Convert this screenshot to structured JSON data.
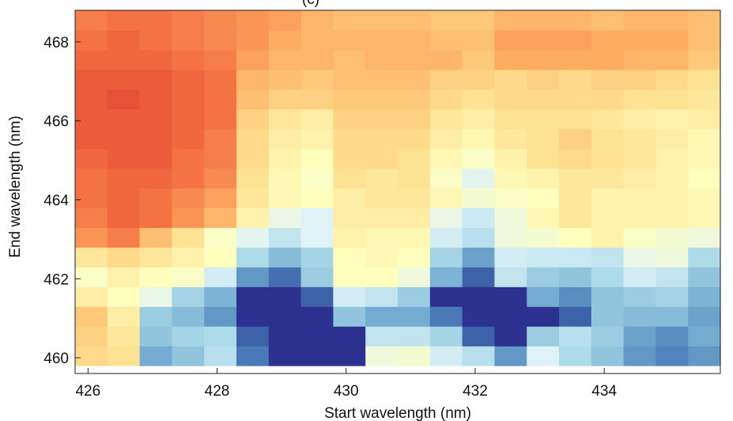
{
  "chart_data": {
    "type": "heatmap",
    "title": "(c)",
    "xlabel": "Start wavelength (nm)",
    "ylabel": "End wavelength (nm)",
    "x_start": 425.8,
    "x_step": 0.5,
    "y_start": 459.8,
    "y_step": 0.5,
    "xlim": [
      425.8,
      435.8
    ],
    "ylim": [
      459.6,
      468.8
    ],
    "xticks": [
      426,
      428,
      430,
      432,
      434
    ],
    "yticks": [
      460,
      462,
      464,
      466,
      468
    ],
    "xtick_labels": [
      "426",
      "428",
      "430",
      "432",
      "434"
    ],
    "ytick_labels": [
      "460",
      "462",
      "464",
      "466",
      "468"
    ],
    "colorscale": [
      "#2c3190",
      "#4575b4",
      "#74add1",
      "#abd9e9",
      "#e0f3f8",
      "#ffffbf",
      "#fee090",
      "#fdae61",
      "#f46d43",
      "#d73027"
    ],
    "values": [
      [
        0.68,
        0.66,
        0.22,
        0.28,
        0.36,
        0.12,
        0.0,
        0.0,
        0.0,
        0.5,
        0.52,
        0.42,
        0.36,
        0.18,
        0.44,
        0.34,
        0.28,
        0.18,
        0.14,
        0.18
      ],
      [
        0.7,
        0.64,
        0.28,
        0.32,
        0.34,
        0.08,
        0.0,
        0.0,
        0.0,
        0.38,
        0.38,
        0.32,
        0.08,
        0.0,
        0.3,
        0.36,
        0.3,
        0.2,
        0.16,
        0.22
      ],
      [
        0.72,
        0.62,
        0.3,
        0.26,
        0.18,
        0.0,
        0.0,
        0.0,
        0.28,
        0.22,
        0.22,
        0.12,
        0.0,
        0.0,
        0.0,
        0.08,
        0.28,
        0.26,
        0.26,
        0.2
      ],
      [
        0.62,
        0.56,
        0.48,
        0.32,
        0.24,
        0.0,
        0.0,
        0.08,
        0.42,
        0.38,
        0.3,
        0.0,
        0.0,
        0.0,
        0.22,
        0.16,
        0.28,
        0.3,
        0.32,
        0.24
      ],
      [
        0.54,
        0.6,
        0.56,
        0.54,
        0.42,
        0.18,
        0.1,
        0.3,
        0.56,
        0.56,
        0.5,
        0.24,
        0.08,
        0.38,
        0.3,
        0.28,
        0.34,
        0.42,
        0.38,
        0.28
      ],
      [
        0.64,
        0.68,
        0.64,
        0.6,
        0.56,
        0.34,
        0.26,
        0.32,
        0.56,
        0.58,
        0.56,
        0.32,
        0.2,
        0.42,
        0.4,
        0.4,
        0.38,
        0.48,
        0.5,
        0.34
      ],
      [
        0.82,
        0.86,
        0.74,
        0.66,
        0.54,
        0.46,
        0.38,
        0.44,
        0.6,
        0.58,
        0.58,
        0.42,
        0.36,
        0.5,
        0.52,
        0.56,
        0.6,
        0.54,
        0.52,
        0.5
      ],
      [
        0.86,
        0.9,
        0.88,
        0.82,
        0.76,
        0.6,
        0.48,
        0.44,
        0.62,
        0.62,
        0.62,
        0.48,
        0.4,
        0.5,
        0.58,
        0.64,
        0.6,
        0.6,
        0.6,
        0.58
      ],
      [
        0.88,
        0.9,
        0.88,
        0.84,
        0.8,
        0.64,
        0.58,
        0.56,
        0.62,
        0.64,
        0.64,
        0.58,
        0.52,
        0.54,
        0.56,
        0.64,
        0.6,
        0.6,
        0.6,
        0.58
      ],
      [
        0.88,
        0.9,
        0.9,
        0.88,
        0.84,
        0.66,
        0.58,
        0.54,
        0.66,
        0.64,
        0.66,
        0.54,
        0.46,
        0.58,
        0.6,
        0.64,
        0.64,
        0.62,
        0.6,
        0.56
      ],
      [
        0.9,
        0.92,
        0.92,
        0.88,
        0.86,
        0.68,
        0.6,
        0.56,
        0.68,
        0.68,
        0.66,
        0.58,
        0.54,
        0.6,
        0.66,
        0.68,
        0.66,
        0.64,
        0.6,
        0.58
      ],
      [
        0.92,
        0.92,
        0.92,
        0.9,
        0.86,
        0.68,
        0.62,
        0.6,
        0.68,
        0.68,
        0.68,
        0.62,
        0.58,
        0.64,
        0.66,
        0.7,
        0.66,
        0.64,
        0.62,
        0.58
      ],
      [
        0.92,
        0.92,
        0.92,
        0.9,
        0.88,
        0.7,
        0.64,
        0.62,
        0.7,
        0.7,
        0.7,
        0.64,
        0.62,
        0.66,
        0.66,
        0.66,
        0.64,
        0.62,
        0.6,
        0.62
      ],
      [
        0.92,
        0.94,
        0.92,
        0.9,
        0.88,
        0.74,
        0.7,
        0.7,
        0.72,
        0.72,
        0.72,
        0.68,
        0.66,
        0.68,
        0.68,
        0.68,
        0.68,
        0.66,
        0.66,
        0.64
      ],
      [
        0.92,
        0.92,
        0.92,
        0.9,
        0.88,
        0.76,
        0.74,
        0.72,
        0.74,
        0.74,
        0.74,
        0.7,
        0.7,
        0.68,
        0.7,
        0.68,
        0.7,
        0.7,
        0.68,
        0.66
      ],
      [
        0.9,
        0.9,
        0.9,
        0.88,
        0.86,
        0.8,
        0.76,
        0.76,
        0.74,
        0.76,
        0.76,
        0.76,
        0.72,
        0.78,
        0.78,
        0.78,
        0.78,
        0.76,
        0.76,
        0.72
      ],
      [
        0.88,
        0.9,
        0.88,
        0.86,
        0.84,
        0.82,
        0.78,
        0.76,
        0.76,
        0.76,
        0.76,
        0.74,
        0.74,
        0.8,
        0.8,
        0.8,
        0.78,
        0.78,
        0.78,
        0.74
      ],
      [
        0.86,
        0.88,
        0.88,
        0.86,
        0.84,
        0.82,
        0.8,
        0.76,
        0.74,
        0.74,
        0.74,
        0.72,
        0.72,
        0.76,
        0.76,
        0.76,
        0.74,
        0.76,
        0.76,
        0.74
      ]
    ]
  }
}
